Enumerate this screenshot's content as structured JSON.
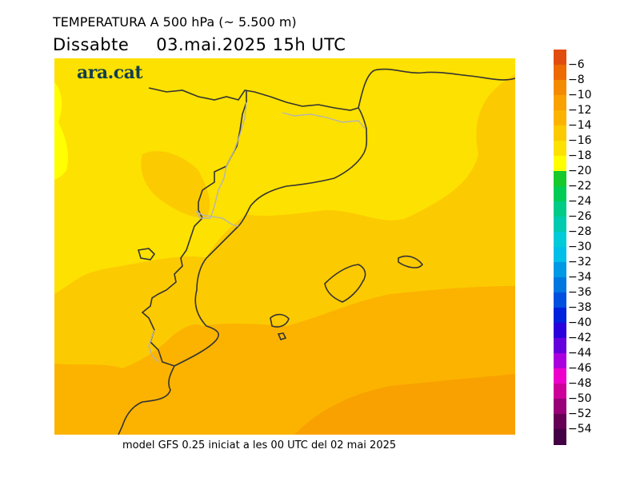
{
  "header": {
    "title": "TEMPERATURA A 500 hPa (~ 5.500 m)",
    "day": "Dissabte",
    "datetime": "03.mai.2025 15h UTC"
  },
  "map": {
    "logo": "ara.cat",
    "field_colors": {
      "minus_20": "#ffff00",
      "minus_18": "#fde100",
      "minus_16": "#fcca00",
      "minus_14": "#fbb300",
      "minus_12": "#f9a100"
    },
    "border_color": "#333333",
    "internal_border_color": "#b4b4b4"
  },
  "footer": {
    "text": "model GFS 0.25 iniciat a les 00 UTC del 02 mai 2025"
  },
  "legend": {
    "labels": [
      "-6",
      "-8",
      "-10",
      "-12",
      "-14",
      "-16",
      "-18",
      "-20",
      "-22",
      "-24",
      "-26",
      "-28",
      "-30",
      "-32",
      "-34",
      "-36",
      "-38",
      "-40",
      "-42",
      "-44",
      "-46",
      "-48",
      "-50",
      "-52",
      "-54"
    ],
    "colors": [
      "#e04d0e",
      "#ec6a00",
      "#f48a00",
      "#f9a100",
      "#fbb300",
      "#fcca00",
      "#fde100",
      "#ffff00",
      "#18c92c",
      "#00cc55",
      "#00cc88",
      "#00cbb0",
      "#00cbd8",
      "#00bfe8",
      "#0099e6",
      "#0077e0",
      "#0050e0",
      "#0022dd",
      "#2a00dd",
      "#6600dd",
      "#aa00dd",
      "#ee00cc",
      "#cc0099",
      "#990077",
      "#660055",
      "#440044"
    ]
  }
}
